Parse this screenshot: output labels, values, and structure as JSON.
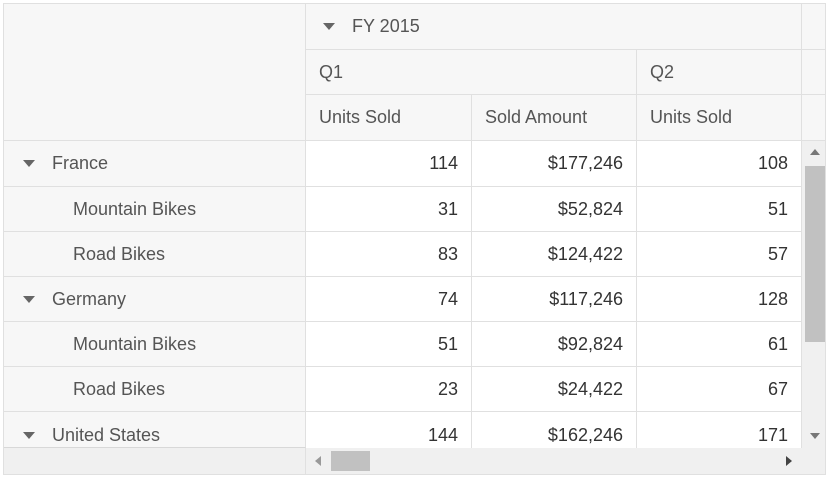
{
  "header": {
    "year_label": "FY 2015",
    "quarters": [
      "Q1",
      "Q2"
    ],
    "measures": [
      "Units Sold",
      "Sold Amount",
      "Units Sold"
    ]
  },
  "rows": [
    {
      "label": "France",
      "level": 0,
      "expanded": true,
      "values": [
        "114",
        "$177,246",
        "108"
      ]
    },
    {
      "label": "Mountain Bikes",
      "level": 1,
      "values": [
        "31",
        "$52,824",
        "51"
      ]
    },
    {
      "label": "Road Bikes",
      "level": 1,
      "values": [
        "83",
        "$124,422",
        "57"
      ]
    },
    {
      "label": "Germany",
      "level": 0,
      "expanded": true,
      "values": [
        "74",
        "$117,246",
        "128"
      ]
    },
    {
      "label": "Mountain Bikes",
      "level": 1,
      "values": [
        "51",
        "$92,824",
        "61"
      ]
    },
    {
      "label": "Road Bikes",
      "level": 1,
      "values": [
        "23",
        "$24,422",
        "67"
      ]
    },
    {
      "label": "United States",
      "level": 0,
      "expanded": true,
      "values": [
        "144",
        "$162,246",
        "171"
      ]
    }
  ]
}
